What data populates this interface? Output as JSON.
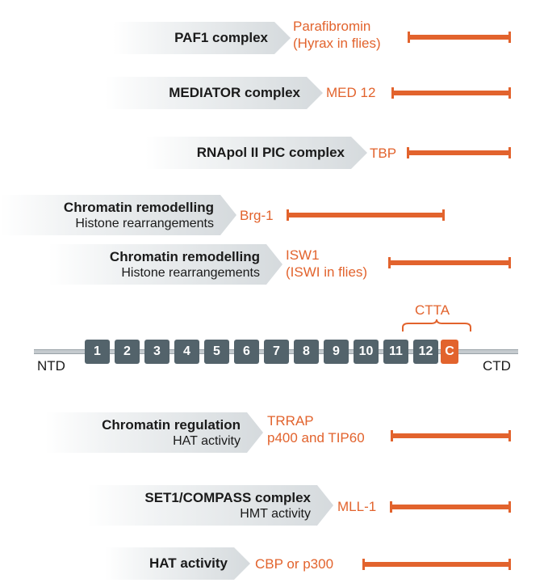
{
  "interactions": [
    {
      "label_line1": "PAF1 complex",
      "label_line2": "",
      "partner_lines": [
        "Parafibromin",
        "(Hyrax in flies)"
      ]
    },
    {
      "label_line1": "MEDIATOR complex",
      "label_line2": "",
      "partner_lines": [
        "MED 12"
      ]
    },
    {
      "label_line1": "RNApol II PIC complex",
      "label_line2": "",
      "partner_lines": [
        "TBP"
      ]
    },
    {
      "label_line1": "Chromatin remodelling",
      "label_line2": "Histone rearrangements",
      "partner_lines": [
        "Brg-1"
      ]
    },
    {
      "label_line1": "Chromatin remodelling",
      "label_line2": "Histone rearrangements",
      "partner_lines": [
        "ISW1",
        "(ISWI in flies)"
      ]
    },
    {
      "label_line1": "Chromatin regulation",
      "label_line2": "HAT activity",
      "partner_lines": [
        "TRRAP",
        "p400 and TIP60"
      ]
    },
    {
      "label_line1": "SET1/COMPASS complex",
      "label_line2": "HMT activity",
      "partner_lines": [
        "MLL-1"
      ]
    },
    {
      "label_line1": "HAT activity",
      "label_line2": "",
      "partner_lines": [
        "CBP or p300"
      ]
    }
  ],
  "domain_map": {
    "repeats": [
      "1",
      "2",
      "3",
      "4",
      "5",
      "6",
      "7",
      "8",
      "9",
      "10",
      "11",
      "12",
      "C"
    ],
    "ctta_label": "CTTA",
    "ntd_label": "NTD",
    "ctd_label": "CTD"
  },
  "colors": {
    "accent": "#e2632d",
    "repeat_box": "#53636b",
    "arrow_gray": "#d5dadd"
  }
}
